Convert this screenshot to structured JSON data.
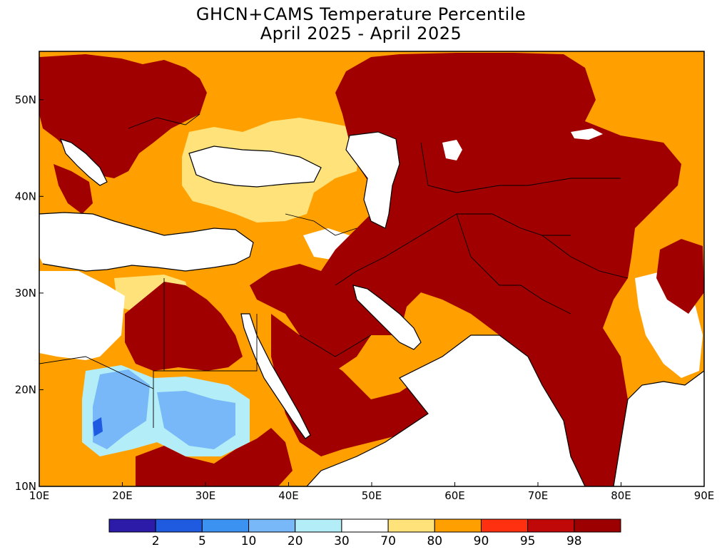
{
  "title": {
    "line1": "GHCN+CAMS Temperature Percentile",
    "line2": "April 2025 - April 2025"
  },
  "map": {
    "lon_range": [
      10,
      90
    ],
    "lat_range": [
      10,
      55
    ],
    "x_ticks": [
      "10E",
      "20E",
      "30E",
      "40E",
      "50E",
      "60E",
      "70E",
      "80E",
      "90E"
    ],
    "y_ticks": [
      "10N",
      "20N",
      "30N",
      "40N",
      "50N"
    ]
  },
  "colorbar": {
    "colors": [
      "#2b1ba8",
      "#1f5be0",
      "#3c92f0",
      "#78b8f8",
      "#b3eef8",
      "#ffffff",
      "#ffe27a",
      "#ffa000",
      "#ff3010",
      "#c00808",
      "#9c0000"
    ],
    "labels": [
      "2",
      "5",
      "10",
      "20",
      "30",
      "70",
      "80",
      "90",
      "95",
      "98"
    ]
  },
  "colors": {
    "ocean": "#ffffff",
    "extreme_warm": "#a00000",
    "warm_90": "#ffa000",
    "warm_80": "#ffe27a",
    "cool_20": "#78b8f8",
    "cool_30": "#b3eef8",
    "border": "#000000"
  }
}
